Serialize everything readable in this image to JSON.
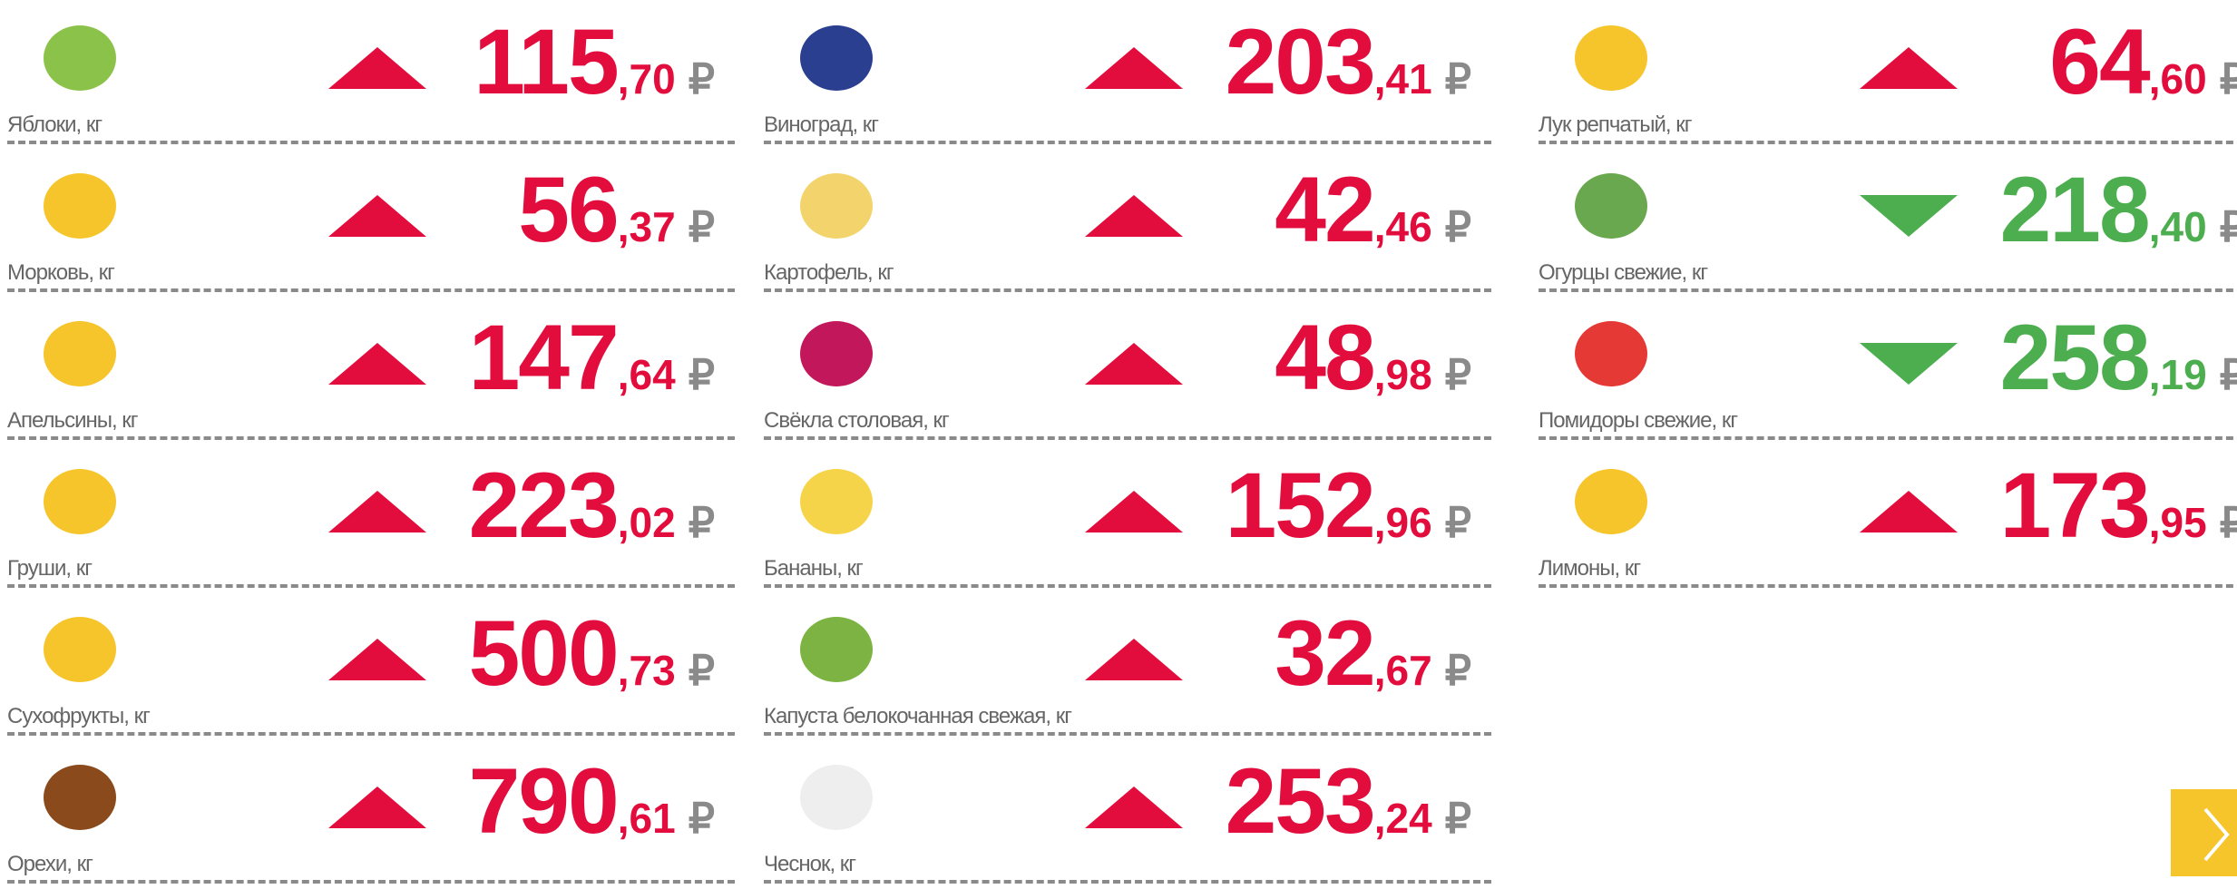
{
  "currency": "₽",
  "trend_colors": {
    "up": "#e30d3d",
    "down": "#4cae4f"
  },
  "columns": [
    [
      {
        "name": "Яблоки, кг",
        "whole": "115",
        "fraction": ",70",
        "trend": "up"
      },
      {
        "name": "Морковь, кг",
        "whole": "56",
        "fraction": ",37",
        "trend": "up"
      },
      {
        "name": "Апельсины, кг",
        "whole": "147",
        "fraction": ",64",
        "trend": "up"
      },
      {
        "name": "Груши, кг",
        "whole": "223",
        "fraction": ",02",
        "trend": "up"
      },
      {
        "name": "Сухофрукты, кг",
        "whole": "500",
        "fraction": ",73",
        "trend": "up"
      },
      {
        "name": "Орехи, кг",
        "whole": "790",
        "fraction": ",61",
        "trend": "up"
      }
    ],
    [
      {
        "name": "Виноград, кг",
        "whole": "203",
        "fraction": ",41",
        "trend": "up"
      },
      {
        "name": "Картофель, кг",
        "whole": "42",
        "fraction": ",46",
        "trend": "up"
      },
      {
        "name": "Свёкла столовая, кг",
        "whole": "48",
        "fraction": ",98",
        "trend": "up"
      },
      {
        "name": "Бананы, кг",
        "whole": "152",
        "fraction": ",96",
        "trend": "up"
      },
      {
        "name": "Капуста белокочанная свежая, кг",
        "whole": "32",
        "fraction": ",67",
        "trend": "up"
      },
      {
        "name": "Чеснок, кг",
        "whole": "253",
        "fraction": ",24",
        "trend": "up"
      }
    ],
    [
      {
        "name": "Лук репчатый, кг",
        "whole": "64",
        "fraction": ",60",
        "trend": "up"
      },
      {
        "name": "Огурцы свежие, кг",
        "whole": "218",
        "fraction": ",40",
        "trend": "down"
      },
      {
        "name": "Помидоры свежие, кг",
        "whole": "258",
        "fraction": ",19",
        "trend": "down"
      },
      {
        "name": "Лимоны, кг",
        "whole": "173",
        "fraction": ",95",
        "trend": "up"
      }
    ]
  ]
}
